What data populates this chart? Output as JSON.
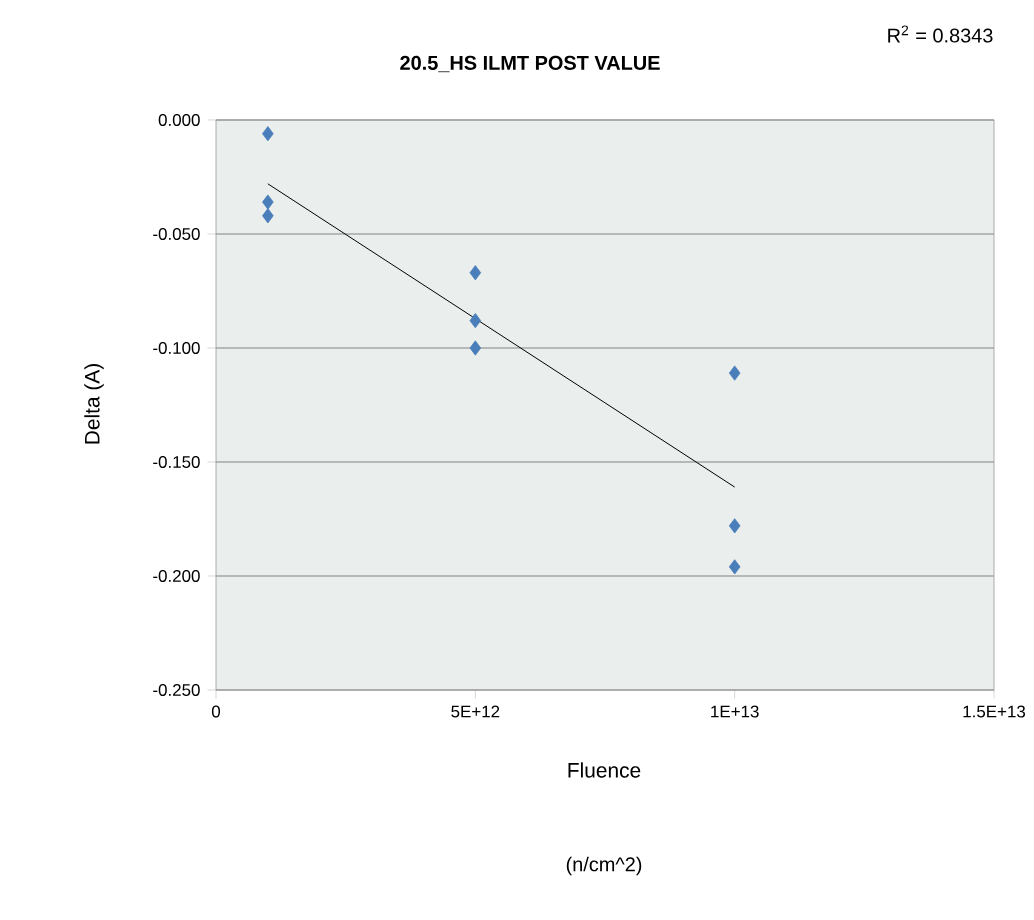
{
  "chart_data": {
    "type": "scatter",
    "title": "20.5_HS ILMT POST VALUE",
    "xlabel": "Fluence",
    "ylabel": "Delta (A)",
    "annotations": [
      "R$^{2}$ = 0.8343",
      "(n/cm^2)"
    ],
    "xlim": [
      0,
      15000000000000.0
    ],
    "xticks": [
      0,
      {
        "value": 5000000000000.0,
        "label": "5E+12"
      },
      {
        "value": 10000000000000.0,
        "label": "1E+13"
      },
      {
        "value": 15000000000000.0,
        "label": "1.5E+13"
      }
    ],
    "ylim": [
      -0.25,
      0
    ],
    "yticks": [
      {
        "value": -0.25,
        "label": "-0.250"
      },
      {
        "value": -0.2,
        "label": "-0.200"
      },
      {
        "value": -0.15,
        "label": "-0.150"
      },
      {
        "value": -0.1,
        "label": "-0.100"
      },
      {
        "value": -0.05,
        "label": "-0.050"
      },
      {
        "value": 0,
        "label": "0.000"
      }
    ],
    "grid": "y",
    "marker": "diamond",
    "series": [
      {
        "type": "scatter",
        "color": "#4a7ebb",
        "x": [
          1000000000000.0,
          1000000000000.0,
          1000000000000.0,
          5000000000000.0,
          5000000000000.0,
          5000000000000.0,
          10000000000000.0,
          10000000000000.0,
          10000000000000.0
        ],
        "values": [
          -0.006,
          -0.036,
          -0.042,
          -0.067,
          -0.088,
          -0.1,
          -0.111,
          -0.178,
          -0.196
        ]
      },
      {
        "type": "line",
        "color": "#000000",
        "marker": "none",
        "x": [
          1000000000000.0,
          10000000000000.0
        ],
        "values": [
          -0.028,
          -0.161
        ]
      }
    ]
  }
}
